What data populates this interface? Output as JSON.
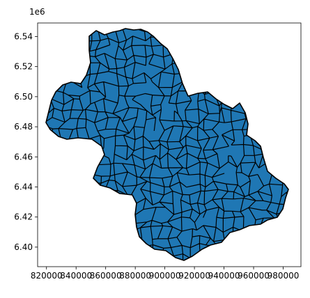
{
  "chart_data": {
    "type": "choropleth-map",
    "title": "",
    "xlabel": "",
    "ylabel": "",
    "xlim": [
      814000,
      992000
    ],
    "ylim": [
      6387000,
      6549000
    ],
    "x_ticks": [
      {
        "value": 820000,
        "label": "820000"
      },
      {
        "value": 840000,
        "label": "840000"
      },
      {
        "value": 860000,
        "label": "860000"
      },
      {
        "value": 880000,
        "label": "880000"
      },
      {
        "value": 900000,
        "label": "900000"
      },
      {
        "value": 920000,
        "label": "920000"
      },
      {
        "value": 940000,
        "label": "940000"
      },
      {
        "value": 960000,
        "label": "960000"
      },
      {
        "value": 980000,
        "label": "980000"
      }
    ],
    "y_ticks": [
      {
        "value": 6400000,
        "label": "6.40"
      },
      {
        "value": 6420000,
        "label": "6.42"
      },
      {
        "value": 6440000,
        "label": "6.44"
      },
      {
        "value": 6460000,
        "label": "6.46"
      },
      {
        "value": 6480000,
        "label": "6.48"
      },
      {
        "value": 6500000,
        "label": "6.50"
      },
      {
        "value": 6520000,
        "label": "6.52"
      },
      {
        "value": 6540000,
        "label": "6.54"
      }
    ],
    "y_offset_label": "1e6",
    "fill_color": "#1f77b4",
    "edge_color": "#000000",
    "grid": false,
    "legend": "none"
  }
}
